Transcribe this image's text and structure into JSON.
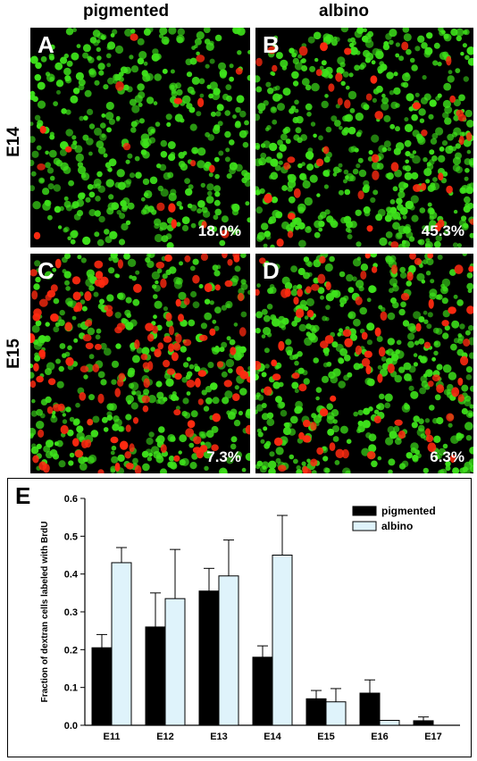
{
  "figure": {
    "column_titles": [
      "pigmented",
      "albino"
    ],
    "row_labels": [
      "E14",
      "E15"
    ],
    "panels": [
      {
        "letter": "A",
        "percent": "18.0%",
        "red_density": 0.06,
        "green_density": 0.85
      },
      {
        "letter": "B",
        "percent": "45.3%",
        "red_density": 0.15,
        "green_density": 1.0
      },
      {
        "letter": "C",
        "percent": "7.3%",
        "red_density": 0.45,
        "green_density": 0.8
      },
      {
        "letter": "D",
        "percent": "6.3%",
        "red_density": 0.28,
        "green_density": 0.95
      }
    ],
    "colors": {
      "green_cells": "#3ee21b",
      "red_cells": "#ff2a10",
      "background": "#000000",
      "pigmented_bar": "#000000",
      "albino_bar": "#dff3fb"
    }
  },
  "chart_data": {
    "type": "bar",
    "panel_letter": "E",
    "categories": [
      "E11",
      "E12",
      "E13",
      "E14",
      "E15",
      "E16",
      "E17"
    ],
    "ylabel": "Fraction of dextran cells labeled with BrdU",
    "ylim": [
      0,
      0.6
    ],
    "yticks": [
      "0.0",
      "0.1",
      "0.2",
      "0.3",
      "0.4",
      "0.5",
      "0.6"
    ],
    "legend_position": "top-right",
    "series": [
      {
        "name": "pigmented",
        "values": [
          0.205,
          0.26,
          0.355,
          0.18,
          0.07,
          0.085,
          0.012
        ],
        "errors": [
          0.035,
          0.09,
          0.06,
          0.03,
          0.022,
          0.035,
          0.01
        ]
      },
      {
        "name": "albino",
        "values": [
          0.43,
          0.335,
          0.395,
          0.45,
          0.062,
          0.013,
          null
        ],
        "errors": [
          0.04,
          0.13,
          0.095,
          0.105,
          0.035,
          0,
          null
        ]
      }
    ]
  }
}
